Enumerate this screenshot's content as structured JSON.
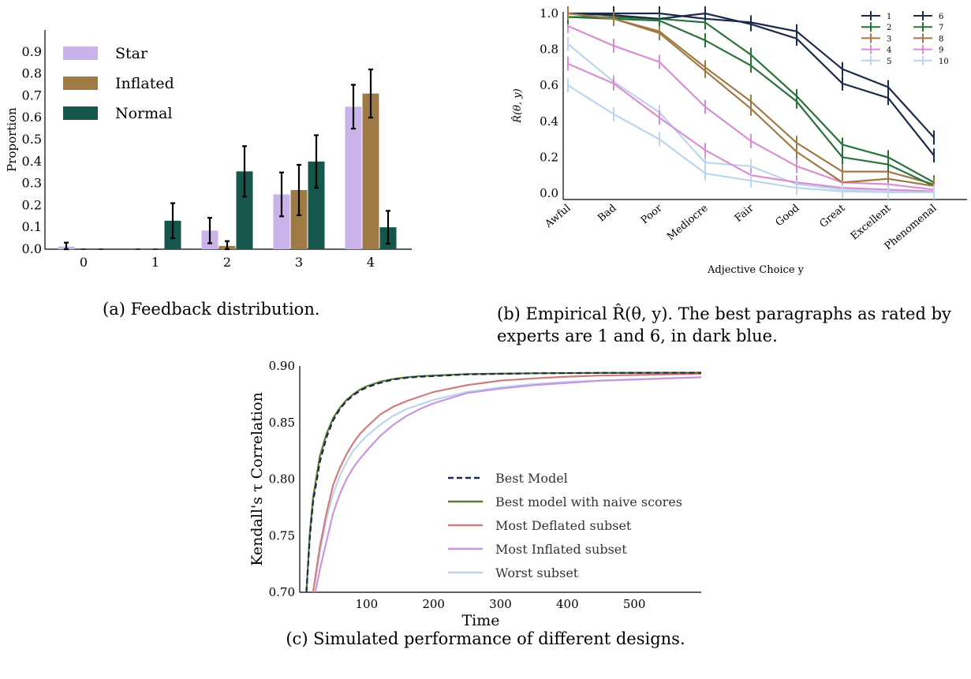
{
  "charts": {
    "a": {
      "caption": "(a) Feedback distribution.",
      "chart_data": {
        "type": "bar",
        "title": "",
        "xlabel": "",
        "ylabel": "Proportion",
        "categories": [
          "0",
          "1",
          "2",
          "3",
          "4"
        ],
        "ylim": [
          0,
          1.0
        ],
        "yticks": [
          "0.0",
          "0.1",
          "0.2",
          "0.3",
          "0.4",
          "0.5",
          "0.6",
          "0.7",
          "0.8",
          "0.9"
        ],
        "legend_position": "top-left",
        "grid": false,
        "series": [
          {
            "name": "Star",
            "color": "#c9b3ea",
            "values": [
              0.012,
              0.0,
              0.085,
              0.25,
              0.65
            ],
            "err": [
              0.018,
              0.0,
              0.058,
              0.1,
              0.1
            ]
          },
          {
            "name": "Inflated",
            "color": "#a07a45",
            "values": [
              0.0,
              0.0,
              0.015,
              0.27,
              0.71
            ],
            "err": [
              0.0,
              0.0,
              0.022,
              0.115,
              0.11
            ]
          },
          {
            "name": "Normal",
            "color": "#15574a",
            "values": [
              0.0,
              0.13,
              0.355,
              0.4,
              0.1
            ],
            "err": [
              0.0,
              0.08,
              0.115,
              0.12,
              0.075
            ]
          }
        ]
      }
    },
    "b": {
      "caption": "(b) Empirical R̂(θ, y). The best paragraphs as rated by experts are 1 and 6, in dark blue.",
      "chart_data": {
        "type": "line",
        "title": "",
        "xlabel": "Adjective Choice y",
        "ylabel": "R̂(θ, y)",
        "categories": [
          "Awful",
          "Bad",
          "Poor",
          "Mediocre",
          "Fair",
          "Good",
          "Great",
          "Excellent",
          "Phenomenal"
        ],
        "ylim": [
          0,
          1.0
        ],
        "yticks": [
          "0.0",
          "0.2",
          "0.4",
          "0.6",
          "0.8",
          "1.0"
        ],
        "legend_position": "top-right",
        "grid": false,
        "series": [
          {
            "name": "1",
            "color": "#1b2b4b",
            "values": [
              1.0,
              1.0,
              1.0,
              0.97,
              0.95,
              0.9,
              0.69,
              0.59,
              0.31
            ]
          },
          {
            "name": "2",
            "color": "#267339",
            "values": [
              0.98,
              0.98,
              0.97,
              0.95,
              0.77,
              0.54,
              0.27,
              0.2,
              0.06
            ]
          },
          {
            "name": "3",
            "color": "#a07a45",
            "values": [
              1.0,
              0.97,
              0.9,
              0.7,
              0.51,
              0.28,
              0.12,
              0.12,
              0.05
            ]
          },
          {
            "name": "4",
            "color": "#d98ed1",
            "values": [
              0.93,
              0.82,
              0.73,
              0.48,
              0.29,
              0.15,
              0.06,
              0.05,
              0.02
            ]
          },
          {
            "name": "5",
            "color": "#bcd4ec",
            "values": [
              0.83,
              0.62,
              0.45,
              0.17,
              0.15,
              0.05,
              0.02,
              0.01,
              0.01
            ]
          },
          {
            "name": "6",
            "color": "#1b2b4b",
            "values": [
              1.0,
              0.99,
              0.97,
              1.0,
              0.94,
              0.86,
              0.61,
              0.53,
              0.21
            ]
          },
          {
            "name": "7",
            "color": "#267339",
            "values": [
              0.98,
              0.97,
              0.96,
              0.85,
              0.71,
              0.51,
              0.2,
              0.16,
              0.04
            ]
          },
          {
            "name": "8",
            "color": "#a07a45",
            "values": [
              1.0,
              0.97,
              0.89,
              0.68,
              0.47,
              0.23,
              0.06,
              0.08,
              0.04
            ]
          },
          {
            "name": "9",
            "color": "#d98ed1",
            "values": [
              0.72,
              0.61,
              0.42,
              0.24,
              0.1,
              0.06,
              0.03,
              0.02,
              0.01
            ]
          },
          {
            "name": "10",
            "color": "#bcd4ec",
            "values": [
              0.6,
              0.44,
              0.3,
              0.11,
              0.07,
              0.03,
              0.01,
              0.005,
              0.005
            ]
          }
        ]
      }
    },
    "c": {
      "caption": "(c) Simulated performance of different designs.",
      "chart_data": {
        "type": "line",
        "title": "",
        "xlabel": "Time",
        "ylabel": "Kendall's τ Correlation",
        "xlim": [
          0,
          600
        ],
        "ylim": [
          0.7,
          0.9
        ],
        "xticks": [
          "100",
          "200",
          "300",
          "400",
          "500"
        ],
        "yticks": [
          "0.70",
          "0.75",
          "0.80",
          "0.85",
          "0.90"
        ],
        "legend_position": "lower-right",
        "grid": false,
        "x": [
          10,
          15,
          20,
          30,
          40,
          50,
          60,
          70,
          80,
          90,
          100,
          120,
          140,
          160,
          180,
          200,
          250,
          300,
          350,
          400,
          450,
          500,
          550,
          600
        ],
        "series": [
          {
            "name": "Best Model",
            "color": "#1b2b4b",
            "dash": true,
            "values": [
              0.7,
              0.748,
              0.78,
              0.815,
              0.837,
              0.852,
              0.862,
              0.869,
              0.874,
              0.878,
              0.881,
              0.885,
              0.888,
              0.8895,
              0.8905,
              0.891,
              0.8925,
              0.893,
              0.8935,
              0.8937,
              0.8938,
              0.8939,
              0.894,
              0.894
            ]
          },
          {
            "name": "Best model with naive scores",
            "color": "#5e7a2d",
            "values": [
              0.7,
              0.752,
              0.784,
              0.82,
              0.84,
              0.854,
              0.863,
              0.87,
              0.875,
              0.879,
              0.882,
              0.886,
              0.8885,
              0.89,
              0.891,
              0.8915,
              0.8928,
              0.8932,
              0.8935,
              0.8937,
              0.8938,
              0.8939,
              0.894,
              0.894
            ]
          },
          {
            "name": "Most Deflated subset",
            "color": "#cf7c7c",
            "values": [
              0.69,
              0.69,
              0.7,
              0.74,
              0.77,
              0.795,
              0.81,
              0.822,
              0.832,
              0.84,
              0.846,
              0.857,
              0.864,
              0.869,
              0.873,
              0.877,
              0.883,
              0.887,
              0.889,
              0.8905,
              0.8915,
              0.892,
              0.8925,
              0.893
            ]
          },
          {
            "name": "Most Inflated subset",
            "color": "#c896e0",
            "values": [
              0.69,
              0.69,
              0.69,
              0.72,
              0.745,
              0.77,
              0.787,
              0.8,
              0.81,
              0.818,
              0.825,
              0.838,
              0.848,
              0.856,
              0.862,
              0.867,
              0.876,
              0.88,
              0.883,
              0.885,
              0.887,
              0.888,
              0.889,
              0.89
            ]
          },
          {
            "name": "Worst subset",
            "color": "#bcd4ec",
            "values": [
              0.69,
              0.69,
              0.7,
              0.735,
              0.765,
              0.787,
              0.803,
              0.815,
              0.825,
              0.832,
              0.838,
              0.848,
              0.856,
              0.862,
              0.866,
              0.87,
              0.877,
              0.881,
              0.884,
              0.886,
              0.887,
              0.888,
              0.889,
              0.89
            ]
          }
        ]
      }
    }
  }
}
